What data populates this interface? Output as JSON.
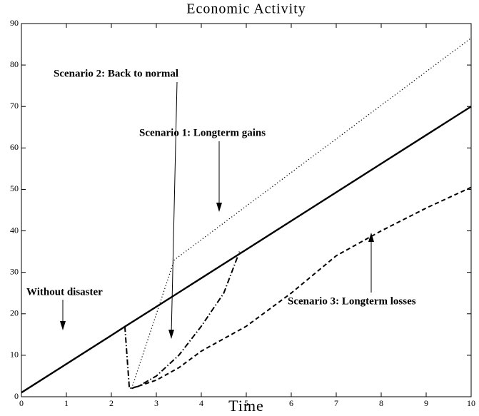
{
  "chart_data": {
    "type": "line",
    "title": "Economic Activity",
    "x_label": "Time",
    "xlim": [
      0,
      10
    ],
    "ylim": [
      0,
      90
    ],
    "xticks": [
      0,
      1,
      2,
      3,
      4,
      5,
      6,
      7,
      8,
      9,
      10
    ],
    "yticks": [
      0,
      10,
      20,
      30,
      40,
      50,
      60,
      70,
      80,
      90
    ],
    "series": [
      {
        "color": "#000000",
        "style": "solid",
        "x": [
          0,
          1,
          2,
          2.3,
          3,
          4,
          5,
          6,
          7,
          8,
          9,
          10
        ],
        "values": [
          1,
          7.9,
          14.8,
          16.9,
          21.7,
          28.6,
          35.5,
          42.4,
          49.3,
          56.2,
          63.1,
          70
        ]
      },
      {
        "color": "#000000",
        "style": "dotted",
        "x": [
          2.45,
          3.4,
          10
        ],
        "values": [
          2,
          33,
          86.5
        ]
      },
      {
        "color": "#000000",
        "style": "dashdot",
        "x": [
          2.3,
          2.4,
          2.6,
          3,
          3.5,
          4,
          4.5,
          4.85
        ],
        "values": [
          17,
          2,
          2.5,
          5,
          10,
          17,
          25,
          35
        ]
      },
      {
        "color": "#000000",
        "style": "dashed",
        "x": [
          2.45,
          3,
          3.5,
          4,
          5,
          6,
          7,
          8,
          9,
          10
        ],
        "values": [
          2,
          4,
          7,
          11,
          17,
          25,
          34,
          40,
          45.5,
          50.5
        ]
      }
    ],
    "annotations": [
      "Scenario 2: Back to normal",
      "Scenario 1: Longterm gains",
      "Without disaster",
      "Scenario 3: Longterm losses"
    ]
  }
}
